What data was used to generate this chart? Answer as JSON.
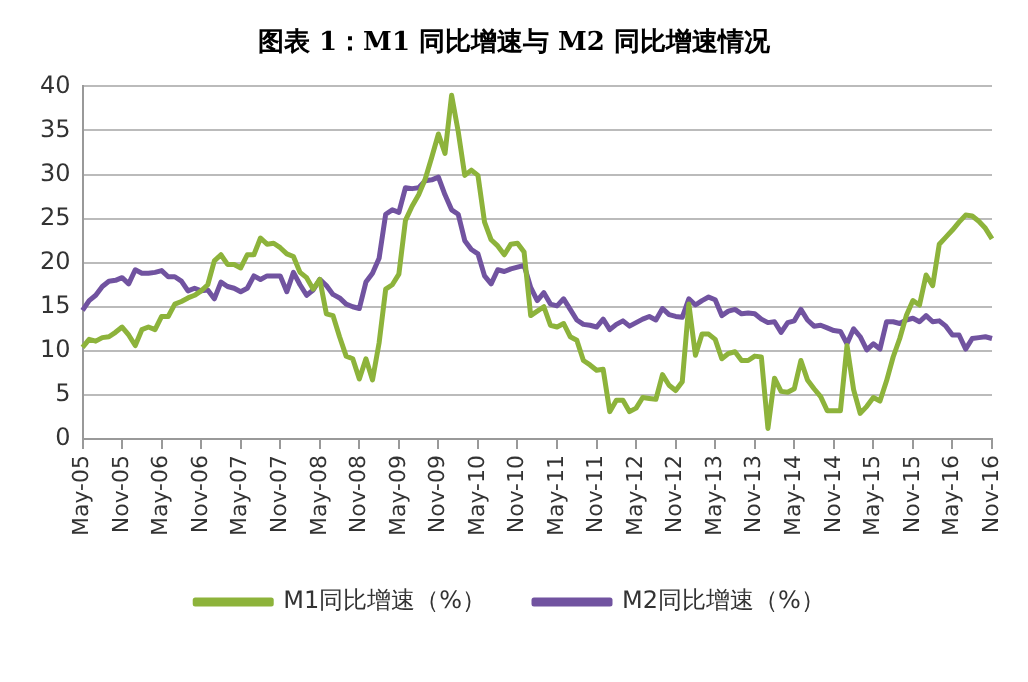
{
  "chart_data": {
    "type": "line",
    "title": "图表 1：M1 同比增速与 M2 同比增速情况",
    "categories": [
      "May-05",
      null,
      null,
      null,
      null,
      null,
      "Nov-05",
      null,
      null,
      null,
      null,
      null,
      "May-06",
      null,
      null,
      null,
      null,
      null,
      "Nov-06",
      null,
      null,
      null,
      null,
      null,
      "May-07",
      null,
      null,
      null,
      null,
      null,
      "Nov-07",
      null,
      null,
      null,
      null,
      null,
      "May-08",
      null,
      null,
      null,
      null,
      null,
      "Nov-08",
      null,
      null,
      null,
      null,
      null,
      "May-09",
      null,
      null,
      null,
      null,
      null,
      "Nov-09",
      null,
      null,
      null,
      null,
      null,
      "May-10",
      null,
      null,
      null,
      null,
      null,
      "Nov-10",
      null,
      null,
      null,
      null,
      null,
      "May-11",
      null,
      null,
      null,
      null,
      null,
      "Nov-11",
      null,
      null,
      null,
      null,
      null,
      "May-12",
      null,
      null,
      null,
      null,
      null,
      "Nov-12",
      null,
      null,
      null,
      null,
      null,
      "May-13",
      null,
      null,
      null,
      null,
      null,
      "Nov-13",
      null,
      null,
      null,
      null,
      null,
      "May-14",
      null,
      null,
      null,
      null,
      null,
      "Nov-14",
      null,
      null,
      null,
      null,
      null,
      "May-15",
      null,
      null,
      null,
      null,
      null,
      "Nov-15",
      null,
      null,
      null,
      null,
      null,
      "May-16",
      null,
      null,
      null,
      null,
      null,
      "Nov-16"
    ],
    "series": [
      {
        "name": "M1同比增速（%）",
        "color": "#8db33b",
        "values": [
          10.4,
          11.3,
          11.1,
          11.5,
          11.6,
          12.1,
          12.7,
          11.8,
          10.6,
          12.4,
          12.7,
          12.4,
          13.9,
          13.9,
          15.3,
          15.6,
          16.0,
          16.3,
          16.8,
          17.5,
          20.2,
          20.9,
          19.8,
          19.8,
          19.4,
          20.9,
          20.9,
          22.8,
          22.1,
          22.2,
          21.7,
          21.0,
          20.7,
          18.9,
          18.3,
          17.0,
          18.1,
          14.2,
          14.0,
          11.6,
          9.4,
          9.1,
          6.8,
          9.1,
          6.7,
          10.9,
          17.0,
          17.5,
          18.7,
          24.8,
          26.4,
          27.7,
          29.5,
          32.0,
          34.6,
          32.4,
          39.0,
          34.9,
          29.9,
          30.5,
          29.9,
          24.6,
          22.6,
          21.9,
          20.9,
          22.1,
          22.2,
          21.2,
          14.0,
          14.5,
          15.0,
          12.9,
          12.7,
          13.1,
          11.6,
          11.2,
          8.9,
          8.4,
          7.8,
          7.9,
          3.1,
          4.4,
          4.4,
          3.1,
          3.5,
          4.7,
          4.6,
          4.5,
          7.3,
          6.1,
          5.5,
          6.5,
          15.3,
          9.5,
          11.9,
          11.9,
          11.3,
          9.1,
          9.7,
          9.9,
          8.9,
          8.9,
          9.4,
          9.3,
          1.2,
          6.9,
          5.4,
          5.3,
          5.7,
          8.9,
          6.7,
          5.7,
          4.8,
          3.2,
          3.2,
          3.2,
          10.6,
          5.6,
          2.9,
          3.7,
          4.7,
          4.3,
          6.6,
          9.3,
          11.4,
          14.0,
          15.7,
          15.2,
          18.6,
          17.4,
          22.1,
          22.9,
          23.7,
          24.6,
          25.4,
          25.3,
          24.7,
          23.9,
          22.7
        ]
      },
      {
        "name": "M2同比增速（%）",
        "color": "#7153a0",
        "values": [
          14.6,
          15.7,
          16.3,
          17.3,
          17.9,
          18.0,
          18.3,
          17.6,
          19.2,
          18.8,
          18.8,
          18.9,
          19.1,
          18.4,
          18.4,
          17.9,
          16.8,
          17.1,
          16.8,
          16.9,
          15.9,
          17.8,
          17.3,
          17.1,
          16.7,
          17.1,
          18.5,
          18.1,
          18.5,
          18.5,
          18.5,
          16.7,
          18.9,
          17.5,
          16.3,
          16.9,
          18.1,
          17.4,
          16.4,
          16.0,
          15.3,
          15.0,
          14.8,
          17.8,
          18.8,
          20.5,
          25.5,
          26.0,
          25.7,
          28.5,
          28.4,
          28.5,
          29.3,
          29.4,
          29.7,
          27.7,
          26.0,
          25.5,
          22.5,
          21.5,
          21.0,
          18.5,
          17.6,
          19.2,
          19.0,
          19.3,
          19.5,
          19.7,
          17.2,
          15.7,
          16.6,
          15.3,
          15.1,
          15.9,
          14.7,
          13.5,
          13.0,
          12.9,
          12.7,
          13.6,
          12.4,
          13.0,
          13.4,
          12.8,
          13.2,
          13.6,
          13.9,
          13.5,
          14.8,
          14.1,
          13.9,
          13.8,
          15.9,
          15.2,
          15.7,
          16.1,
          15.8,
          14.0,
          14.5,
          14.7,
          14.2,
          14.3,
          14.2,
          13.6,
          13.2,
          13.3,
          12.1,
          13.2,
          13.4,
          14.7,
          13.5,
          12.8,
          12.9,
          12.6,
          12.3,
          12.2,
          10.8,
          12.5,
          11.6,
          10.1,
          10.8,
          10.2,
          13.3,
          13.3,
          13.1,
          13.5,
          13.7,
          13.3,
          14.0,
          13.3,
          13.4,
          12.8,
          11.8,
          11.8,
          10.2,
          11.4,
          11.5,
          11.6,
          11.4
        ]
      }
    ],
    "ylim": [
      0,
      40
    ],
    "yticks": [
      0,
      5,
      10,
      15,
      20,
      25,
      30,
      35,
      40
    ],
    "grid": "y",
    "legend": "bottom",
    "marker": "none",
    "line_style": "solid"
  }
}
